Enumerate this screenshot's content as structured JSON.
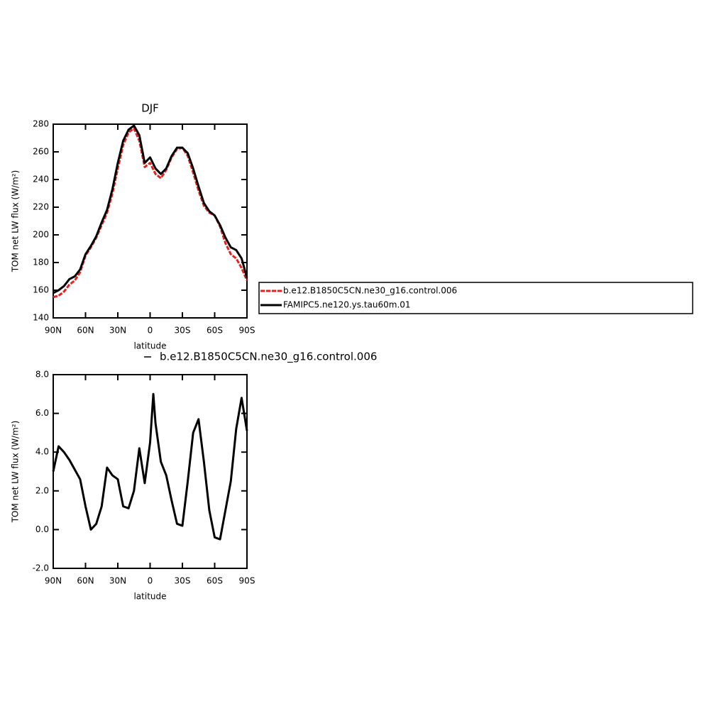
{
  "chart_data": [
    {
      "type": "line",
      "title": "DJF",
      "xlabel": "latitude",
      "ylabel": "TOM net LW flux (W/m²)",
      "xlim": [
        90,
        -90
      ],
      "xticks": [
        {
          "value": 90,
          "label": "90N"
        },
        {
          "value": 60,
          "label": "60N"
        },
        {
          "value": 30,
          "label": "30N"
        },
        0,
        {
          "value": -30,
          "label": "30S"
        },
        {
          "value": -60,
          "label": "60S"
        },
        {
          "value": -90,
          "label": "90S"
        }
      ],
      "ylim": [
        140,
        280
      ],
      "yticks": [
        140,
        160,
        180,
        200,
        220,
        240,
        260,
        280
      ],
      "legend": "right",
      "x": [
        90,
        85,
        80,
        75,
        70,
        65,
        60,
        55,
        50,
        45,
        40,
        35,
        30,
        25,
        20,
        15,
        10,
        5,
        0,
        -5,
        -10,
        -15,
        -20,
        -25,
        -30,
        -35,
        -40,
        -45,
        -50,
        -55,
        -60,
        -65,
        -70,
        -75,
        -80,
        -85,
        -90
      ],
      "series": [
        {
          "name": "b.e12.B1850C5CN.ne30_g16.control.006",
          "color": "#e8211f",
          "dash": true,
          "values": [
            155,
            156,
            159,
            164,
            167,
            173,
            185,
            191,
            198,
            207,
            216,
            230,
            248,
            265,
            274,
            277,
            268,
            249,
            252,
            244,
            241,
            247,
            256,
            262,
            263,
            257,
            245,
            232,
            221,
            216,
            214,
            206,
            194,
            186,
            183,
            176,
            167
          ]
        },
        {
          "name": "FAMIPC5.ne120.ys.tau60m.01",
          "color": "#000000",
          "dash": false,
          "values": [
            158,
            160,
            163,
            168,
            170,
            175,
            186,
            192,
            199,
            209,
            218,
            233,
            252,
            268,
            276,
            279,
            272,
            252,
            256,
            248,
            244,
            248,
            257,
            263,
            263,
            259,
            248,
            235,
            223,
            217,
            214,
            207,
            198,
            191,
            189,
            183,
            169
          ]
        }
      ]
    },
    {
      "type": "line",
      "xlabel": "latitude",
      "ylabel": "TOM net LW flux (W/m²)",
      "xlim": [
        90,
        -90
      ],
      "xticks": [
        {
          "value": 90,
          "label": "90N"
        },
        {
          "value": 60,
          "label": "60N"
        },
        {
          "value": 30,
          "label": "30N"
        },
        0,
        {
          "value": -30,
          "label": "30S"
        },
        {
          "value": -60,
          "label": "60S"
        },
        {
          "value": -90,
          "label": "90S"
        }
      ],
      "ylim": [
        -2,
        8
      ],
      "yticks": [
        {
          "value": -2,
          "label": "-2.0"
        },
        {
          "value": 0,
          "label": "0.0"
        },
        {
          "value": 2,
          "label": "2.0"
        },
        {
          "value": 4,
          "label": "4.0"
        },
        {
          "value": 6,
          "label": "6.0"
        },
        {
          "value": 8,
          "label": "8.0"
        }
      ],
      "legend": "top",
      "x": [
        90,
        85,
        80,
        75,
        70,
        65,
        60,
        55,
        50,
        45,
        40,
        35,
        30,
        25,
        20,
        15,
        10,
        5,
        0,
        -3,
        -5,
        -10,
        -15,
        -20,
        -25,
        -30,
        -35,
        -40,
        -45,
        -50,
        -55,
        -60,
        -65,
        -70,
        -75,
        -80,
        -85,
        -90
      ],
      "series": [
        {
          "name": "b.e12.B1850C5CN.ne30_g16.control.006",
          "color": "#000000",
          "dash": false,
          "values": [
            3.0,
            4.3,
            4.0,
            3.6,
            3.1,
            2.6,
            1.2,
            0.0,
            0.3,
            1.2,
            3.2,
            2.8,
            2.6,
            1.2,
            1.1,
            2.0,
            4.2,
            2.4,
            4.5,
            7.0,
            5.5,
            3.5,
            2.8,
            1.5,
            0.3,
            0.2,
            2.5,
            5.0,
            5.7,
            3.5,
            1.0,
            -0.4,
            -0.5,
            1.0,
            2.5,
            5.2,
            6.8,
            5.1
          ]
        }
      ]
    }
  ]
}
